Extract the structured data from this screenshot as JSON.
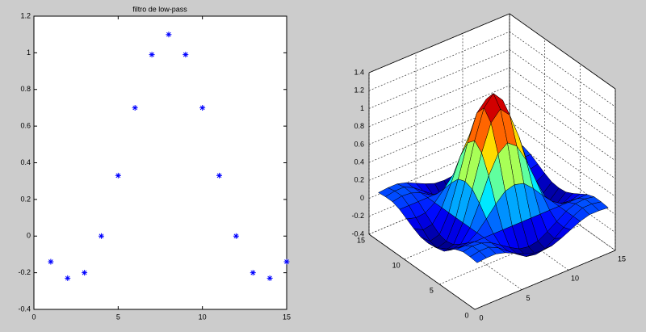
{
  "chart_data": [
    {
      "type": "scatter",
      "title": "filtro de low-pass",
      "marker": "*",
      "color": "#0000ff",
      "x": [
        1,
        2,
        3,
        4,
        5,
        6,
        7,
        8,
        9,
        10,
        11,
        12,
        13,
        14,
        15
      ],
      "values": [
        -0.14,
        -0.23,
        -0.2,
        0,
        0.33,
        0.7,
        0.99,
        1.1,
        0.99,
        0.7,
        0.33,
        0,
        -0.2,
        -0.23,
        -0.14
      ],
      "xlim": [
        0,
        15
      ],
      "xticks": [
        0,
        5,
        10,
        15
      ],
      "ylim": [
        -0.4,
        1.2
      ],
      "yticks": [
        -0.4,
        -0.2,
        0,
        0.2,
        0.4,
        0.6,
        0.8,
        1,
        1.2
      ]
    },
    {
      "type": "surface",
      "colormap": "jet",
      "grid": true,
      "x": [
        1,
        2,
        3,
        4,
        5,
        6,
        7,
        8,
        9,
        10,
        11,
        12,
        13,
        14,
        15
      ],
      "y": [
        1,
        2,
        3,
        4,
        5,
        6,
        7,
        8,
        9,
        10,
        11,
        12,
        13,
        14,
        15
      ],
      "z": [
        [
          0.02,
          0.03,
          0.03,
          0,
          -0.05,
          -0.1,
          -0.14,
          -0.15,
          -0.14,
          -0.1,
          -0.05,
          0,
          0.03,
          0.03,
          0.02
        ],
        [
          0.03,
          0.05,
          0.05,
          0,
          -0.08,
          -0.16,
          -0.23,
          -0.25,
          -0.23,
          -0.16,
          -0.08,
          0,
          0.05,
          0.05,
          0.03
        ],
        [
          0.03,
          0.05,
          0.04,
          0,
          -0.07,
          -0.14,
          -0.2,
          -0.22,
          -0.2,
          -0.14,
          -0.07,
          0,
          0.04,
          0.05,
          0.03
        ],
        [
          0,
          0,
          0,
          0,
          0,
          0,
          0,
          0,
          0,
          0,
          0,
          0,
          0,
          0,
          0
        ],
        [
          -0.05,
          -0.08,
          -0.07,
          0,
          0.11,
          0.23,
          0.33,
          0.36,
          0.33,
          0.23,
          0.11,
          0,
          -0.07,
          -0.08,
          -0.05
        ],
        [
          -0.1,
          -0.16,
          -0.14,
          0,
          0.23,
          0.49,
          0.69,
          0.77,
          0.69,
          0.49,
          0.23,
          0,
          -0.14,
          -0.16,
          -0.1
        ],
        [
          -0.14,
          -0.23,
          -0.2,
          0,
          0.33,
          0.69,
          0.98,
          1.09,
          0.98,
          0.69,
          0.33,
          0,
          -0.2,
          -0.23,
          -0.14
        ],
        [
          -0.15,
          -0.25,
          -0.22,
          0,
          0.36,
          0.77,
          1.09,
          1.21,
          1.09,
          0.77,
          0.36,
          0,
          -0.22,
          -0.25,
          -0.15
        ],
        [
          -0.14,
          -0.23,
          -0.2,
          0,
          0.33,
          0.69,
          0.98,
          1.09,
          0.98,
          0.69,
          0.33,
          0,
          -0.2,
          -0.23,
          -0.14
        ],
        [
          -0.1,
          -0.16,
          -0.14,
          0,
          0.23,
          0.49,
          0.69,
          0.77,
          0.69,
          0.49,
          0.23,
          0,
          -0.14,
          -0.16,
          -0.1
        ],
        [
          -0.05,
          -0.08,
          -0.07,
          0,
          0.11,
          0.23,
          0.33,
          0.36,
          0.33,
          0.23,
          0.11,
          0,
          -0.07,
          -0.08,
          -0.05
        ],
        [
          0,
          0,
          0,
          0,
          0,
          0,
          0,
          0,
          0,
          0,
          0,
          0,
          0,
          0,
          0
        ],
        [
          0.03,
          0.05,
          0.04,
          0,
          -0.07,
          -0.14,
          -0.2,
          -0.22,
          -0.2,
          -0.14,
          -0.07,
          0,
          0.04,
          0.05,
          0.03
        ],
        [
          0.03,
          0.05,
          0.05,
          0,
          -0.08,
          -0.16,
          -0.23,
          -0.25,
          -0.23,
          -0.16,
          -0.08,
          0,
          0.05,
          0.05,
          0.03
        ],
        [
          0.02,
          0.03,
          0.03,
          0,
          -0.05,
          -0.1,
          -0.14,
          -0.15,
          -0.14,
          -0.1,
          -0.05,
          0,
          0.03,
          0.03,
          0.02
        ]
      ],
      "xlim": [
        0,
        15
      ],
      "xticks": [
        0,
        5,
        10,
        15
      ],
      "ylim": [
        0,
        15
      ],
      "yticks": [
        0,
        5,
        10,
        15
      ],
      "zlim": [
        -0.4,
        1.4
      ],
      "zticks": [
        -0.4,
        -0.2,
        0,
        0.2,
        0.4,
        0.6,
        0.8,
        1,
        1.2,
        1.4
      ]
    }
  ]
}
